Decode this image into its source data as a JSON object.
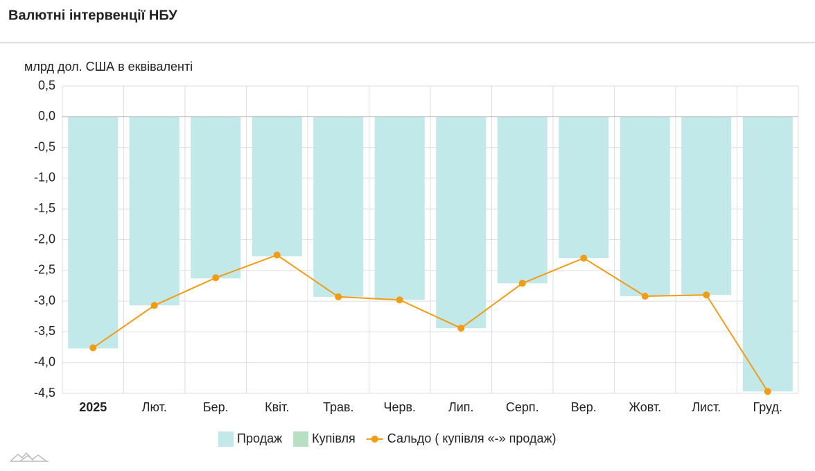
{
  "chart_data": {
    "type": "bar",
    "title": "Валютні інтервенції НБУ",
    "y_label": "млрд дол. США в еквіваленті",
    "categories": [
      "2025",
      "Лют.",
      "Бер.",
      "Квіт.",
      "Трав.",
      "Черв.",
      "Лип.",
      "Серп.",
      "Вер.",
      "Жовт.",
      "Лист.",
      "Груд."
    ],
    "series": [
      {
        "name": "Продаж",
        "type": "bar",
        "color": "#c2e9e9",
        "values": [
          -3.77,
          -3.07,
          -2.63,
          -2.27,
          -2.93,
          -2.98,
          -3.44,
          -2.71,
          -2.3,
          -2.92,
          -2.9,
          -4.47
        ]
      },
      {
        "name": "Купівля",
        "type": "bar",
        "color": "#b7e0c2",
        "values": [
          0,
          0,
          0,
          0.01,
          0,
          0,
          0,
          0,
          0,
          0,
          0,
          0
        ]
      },
      {
        "name": "Сальдо ( купівля «-» продаж)",
        "type": "line",
        "color": "#f39c12",
        "values": [
          -3.76,
          -3.07,
          -2.62,
          -2.25,
          -2.93,
          -2.98,
          -3.44,
          -2.71,
          -2.3,
          -2.92,
          -2.9,
          -4.47
        ]
      }
    ],
    "ylim": [
      -4.5,
      0.5
    ],
    "yticks": [
      {
        "value": 0.5,
        "label": "0,5"
      },
      {
        "value": 0,
        "label": "0,0"
      },
      {
        "value": -0.5,
        "label": "-0,5"
      },
      {
        "value": -1,
        "label": "-1,0"
      },
      {
        "value": -1.5,
        "label": "-1,5"
      },
      {
        "value": -2,
        "label": "-2,0"
      },
      {
        "value": -2.5,
        "label": "-2,5"
      },
      {
        "value": -3,
        "label": "-3,0"
      },
      {
        "value": -3.5,
        "label": "-3,5"
      },
      {
        "value": -4,
        "label": "-4,0"
      },
      {
        "value": -4.5,
        "label": "-4,5"
      }
    ],
    "grid": true
  }
}
